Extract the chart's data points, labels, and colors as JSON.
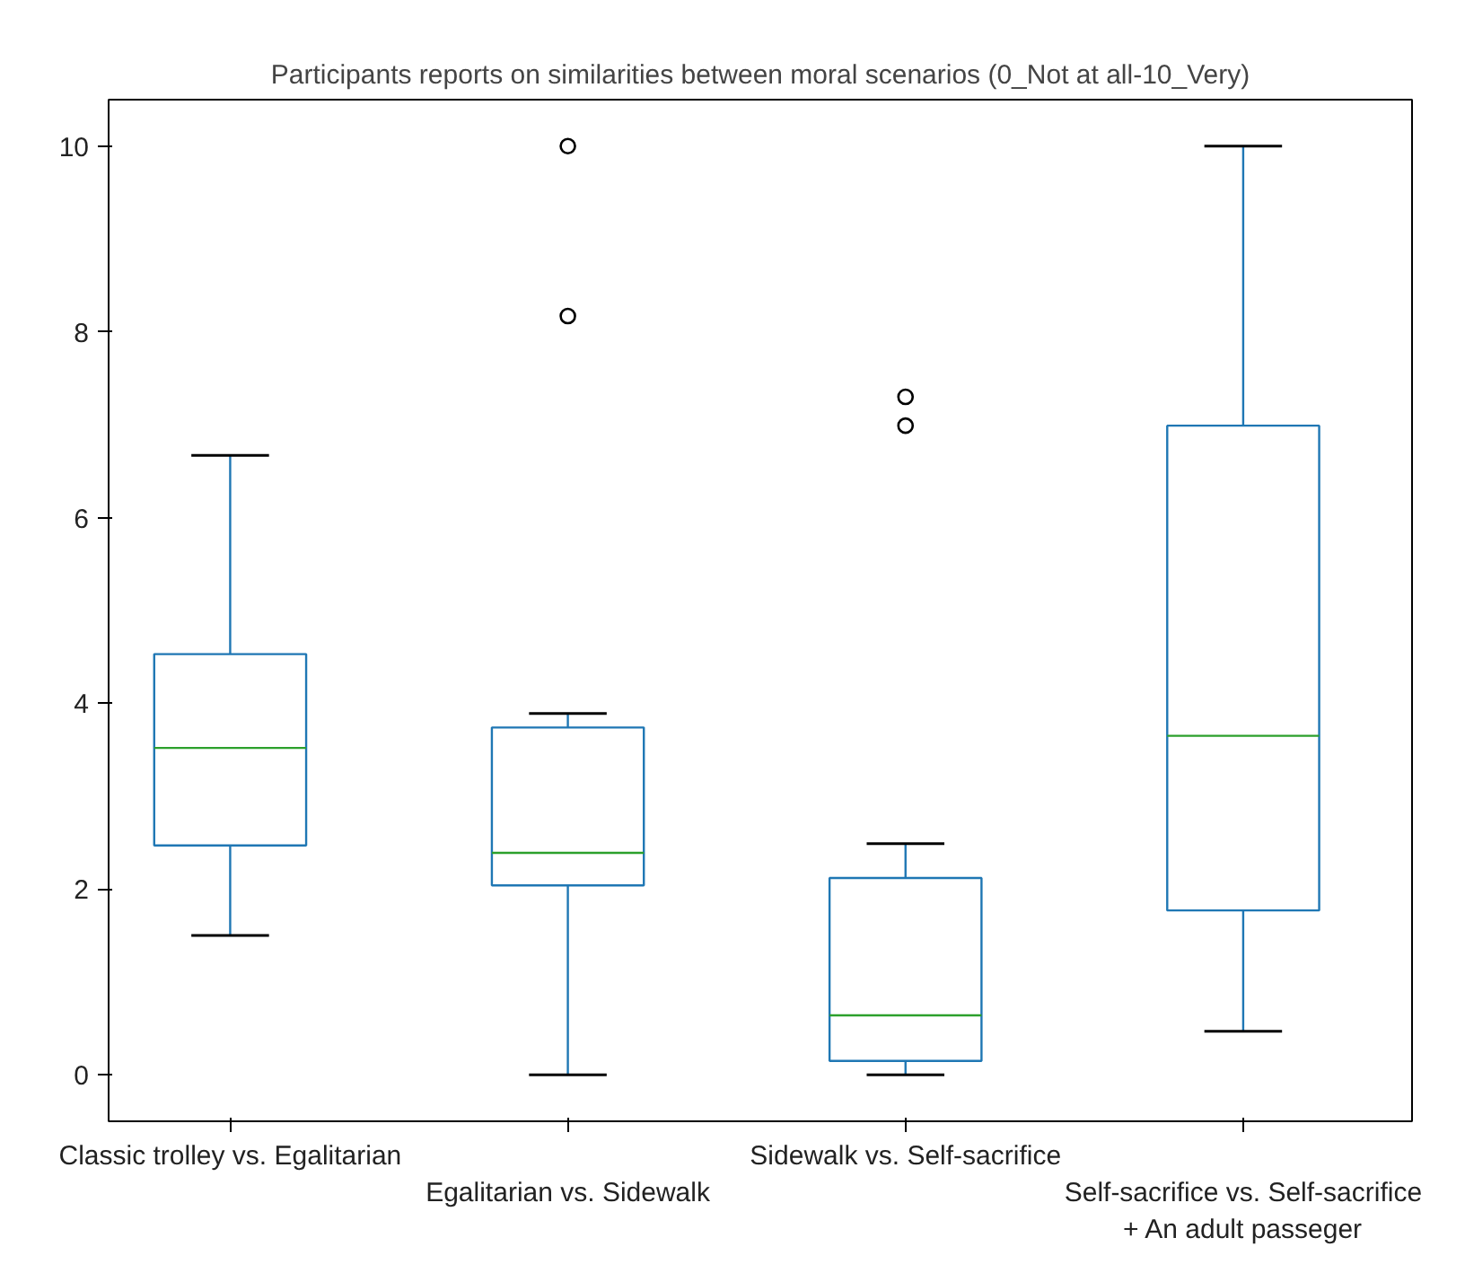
{
  "chart_data": {
    "type": "box",
    "title": "Participants reports on similarities between moral scenarios (0_Not at all-10_Very)",
    "categories": [
      "Classic trolley vs. Egalitarian",
      "Egalitarian vs. Sidewalk",
      "Sidewalk vs. Self-sacrifice",
      "Self-sacrifice vs. Self-sacrifice\n+ An adult passeger"
    ],
    "series": [
      {
        "color": "#1f77b4",
        "boxes": [
          {
            "low": 1.5,
            "q1": 2.47,
            "median": 3.52,
            "q3": 4.53,
            "high": 6.67
          },
          {
            "low": 0,
            "q1": 2.04,
            "median": 2.39,
            "q3": 3.74,
            "high": 3.89,
            "outliers": [
              8.17,
              10
            ]
          },
          {
            "low": 0,
            "q1": 0.15,
            "median": 0.64,
            "q3": 2.12,
            "high": 2.49,
            "outliers": [
              6.99,
              7.3
            ]
          },
          {
            "low": 0.47,
            "q1": 1.77,
            "median": 3.65,
            "q3": 6.99,
            "high": 10
          }
        ]
      }
    ],
    "ylim": [
      -0.5,
      10.5
    ],
    "yticks": [
      0,
      2,
      4,
      6,
      8,
      10
    ],
    "grid": false
  }
}
